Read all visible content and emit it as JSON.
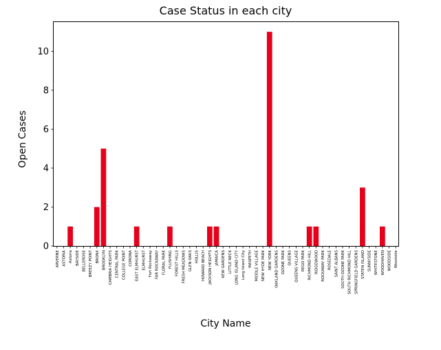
{
  "chart_data": {
    "type": "bar",
    "title": "Case Status in each city",
    "xlabel": "City Name",
    "ylabel": "Open Cases",
    "ylim": [
      0,
      11.5
    ],
    "yticks": [
      0,
      2,
      4,
      6,
      8,
      10
    ],
    "bar_color": "#e6001a",
    "categories": [
      "ARVERNE",
      "ASTORIA",
      "Astoria",
      "BAYSIDE",
      "BELLEROSE",
      "BREEZY POINT",
      "BRONX",
      "BROOKLYN",
      "CAMBRIA HEIGHTS",
      "CENTRAL PARK",
      "COLLEGE POINT",
      "CORONA",
      "EAST ELMHURST",
      "ELMHURST",
      "Fort Rockaway",
      "FAR ROCKAWAY",
      "FLORAL PARK",
      "FLUSHING",
      "FOREST HILLS",
      "FRESH MEADOWS",
      "GLEN OAKS",
      "HOLLIS",
      "HOWARD BEACH",
      "JACKSON HEIGHTS",
      "JAMAICA",
      "KEW GARDENS",
      "LITTLE NECK",
      "LONG ISLAND CITY",
      "Long Island City",
      "MASPETH",
      "MIDDLE VILLAGE",
      "NEW HYDE PARK",
      "NEW YORK",
      "OAKLAND GARDENS",
      "OZONE PARK",
      "QUEENS",
      "QUEENS VILLAGE",
      "REGO PARK",
      "RICHMOND HILL",
      "RIDGEWOOD",
      "ROCKAWAY PARK",
      "ROSEDALE",
      "SAINT ALBANS",
      "SOUTH OZONE PARK",
      "SOUTH RICHMOND HILL",
      "SPRINGFIELD GARDENS",
      "STATEN ISLAND",
      "SUNNYSIDE",
      "WHITESTONE",
      "WOODHAVEN",
      "WOODSIDE",
      "Woodside"
    ],
    "values": [
      0,
      0,
      1,
      0,
      0,
      0,
      2,
      5,
      0,
      0,
      0,
      0,
      1,
      0,
      0,
      0,
      0,
      1,
      0,
      0,
      0,
      0,
      0,
      1,
      1,
      0,
      0,
      0,
      0,
      0,
      0,
      0,
      11,
      0,
      0,
      0,
      0,
      0,
      1,
      1,
      0,
      0,
      0,
      0,
      0,
      0,
      3,
      0,
      0,
      1,
      0,
      0
    ]
  }
}
